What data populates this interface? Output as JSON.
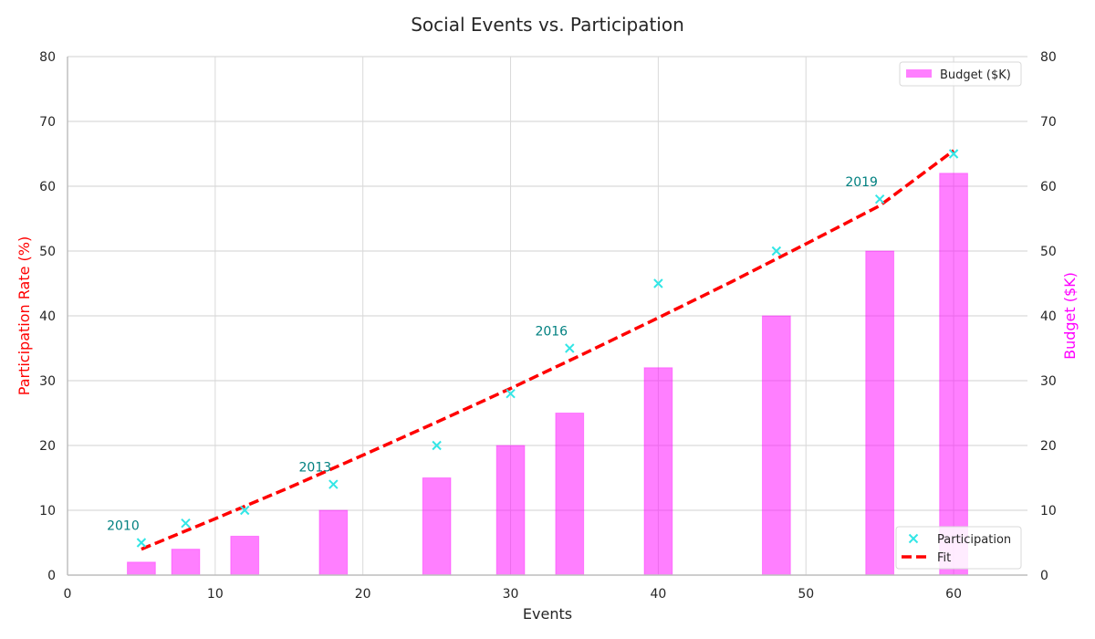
{
  "chart_data": {
    "type": "bar",
    "title": "Social Events vs. Participation",
    "xlabel": "Events",
    "ylabel_left": "Participation Rate (%)",
    "ylabel_right": "Budget ($K)",
    "xlim": [
      0,
      65
    ],
    "ylim_left": [
      0,
      80
    ],
    "ylim_right": [
      0,
      80
    ],
    "x_ticks": [
      0,
      10,
      20,
      30,
      40,
      50,
      60
    ],
    "y_ticks": [
      0,
      10,
      20,
      30,
      40,
      50,
      60,
      70,
      80
    ],
    "grid": true,
    "series": [
      {
        "name": "Budget ($K)",
        "kind": "bar",
        "axis": "right",
        "color": "#ff00ff",
        "x": [
          5,
          8,
          12,
          18,
          25,
          30,
          34,
          40,
          48,
          55,
          60
        ],
        "values": [
          2,
          4,
          6,
          10,
          15,
          20,
          25,
          32,
          40,
          50,
          62
        ]
      },
      {
        "name": "Participation",
        "kind": "scatter",
        "axis": "left",
        "color": "#33e6e6",
        "x": [
          5,
          8,
          12,
          18,
          25,
          30,
          34,
          40,
          48,
          55,
          60
        ],
        "values": [
          5,
          8,
          10,
          14,
          20,
          28,
          35,
          45,
          50,
          58,
          65
        ]
      },
      {
        "name": "Fit",
        "kind": "line",
        "axis": "left",
        "color": "#ff0000",
        "x": [
          5,
          10,
          15,
          20,
          25,
          30,
          35,
          40,
          45,
          50,
          55,
          60
        ],
        "values": [
          4.0,
          8.7,
          13.5,
          18.5,
          23.6,
          28.8,
          34.2,
          39.7,
          45.3,
          51.1,
          57.0,
          65.5
        ]
      }
    ],
    "annotations": [
      {
        "text": "2010",
        "x": 5,
        "y": 5
      },
      {
        "text": "2013",
        "x": 18,
        "y": 14
      },
      {
        "text": "2016",
        "x": 34,
        "y": 35
      },
      {
        "text": "2019",
        "x": 55,
        "y": 58
      }
    ],
    "legend_upper": "top-right",
    "legend_lower": "bottom-right",
    "colors": {
      "left_axis_label": "#ff0000",
      "right_axis_label": "#ff00ff",
      "annotation": "#008080",
      "grid": "#d9d9d9"
    }
  }
}
